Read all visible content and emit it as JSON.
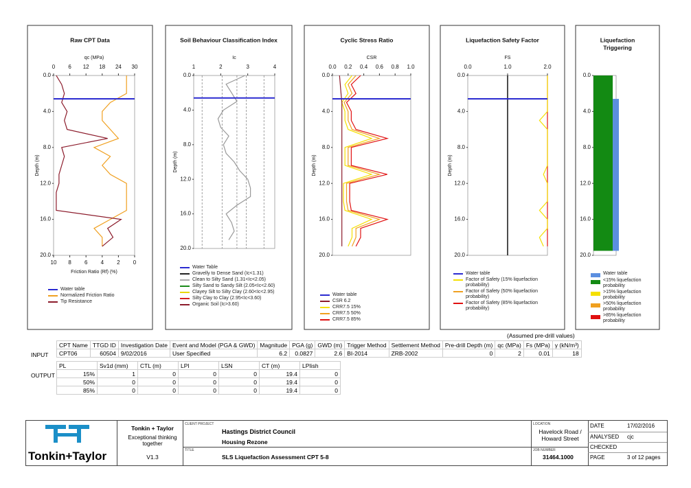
{
  "depth": [
    0,
    1,
    2,
    3,
    4,
    5,
    6,
    7,
    8,
    9,
    10,
    11,
    12,
    13,
    14,
    15,
    16,
    17,
    18,
    19
  ],
  "panels": [
    {
      "title": "Raw CPT Data",
      "xlabel": "qc (MPa)",
      "xlim": [
        0,
        30
      ],
      "xticks": [
        0,
        6,
        12,
        18,
        24,
        30
      ],
      "x2label": "Friction Ratio (Rf) (%)",
      "x2lim": [
        10,
        0
      ],
      "x2ticks": [
        10,
        8,
        6,
        4,
        2,
        0
      ],
      "ylabel": "Depth (m)",
      "ylim": [
        0,
        20
      ],
      "yticks": [
        {
          "value": 0,
          "label": "0.0"
        },
        {
          "value": 4,
          "label": "4.0"
        },
        {
          "value": 8,
          "label": "8.0"
        },
        {
          "value": 12,
          "label": "12.0"
        },
        {
          "value": 16,
          "label": "16.0"
        },
        {
          "value": 20,
          "label": "20.0"
        }
      ],
      "legend": [
        {
          "label": "Water table",
          "color": "#2a2ad0"
        },
        {
          "label": "Normalized Friction Ratio",
          "color": "#f0a020"
        },
        {
          "label": "Tip Resistance",
          "color": "#8b1a2a"
        }
      ],
      "curves": [
        {
          "color": "#f0a020",
          "axis": "x2",
          "values": [
            1,
            1,
            1,
            3,
            4,
            4,
            3,
            2,
            5,
            3,
            4,
            3,
            1,
            1,
            1,
            1,
            3,
            5,
            4,
            4
          ]
        },
        {
          "color": "#8b1a2a",
          "values": [
            1,
            3,
            4,
            3,
            5,
            4,
            5,
            20,
            3,
            4,
            3,
            2,
            2,
            1,
            1,
            1,
            25,
            20,
            22,
            18
          ]
        }
      ]
    },
    {
      "title": "Soil Behaviour Classification Index",
      "xlabel": "Ic",
      "xlim": [
        1,
        4
      ],
      "xticks": [
        1,
        2,
        3,
        4
      ],
      "ylabel": "Depth (m)",
      "ylim": [
        0,
        20
      ],
      "zone_lines": [
        1.31,
        2.05,
        2.6,
        2.95,
        3.6
      ],
      "yticks": [
        {
          "value": 0,
          "label": "0.0"
        },
        {
          "value": 4,
          "label": "4.0"
        },
        {
          "value": 8,
          "label": "8.0"
        },
        {
          "value": 12,
          "label": "12.0"
        },
        {
          "value": 16,
          "label": "16.0"
        },
        {
          "value": 20,
          "label": "20.0"
        }
      ],
      "legend": [
        {
          "label": "Water Table",
          "color": "#2a2ad0"
        },
        {
          "label": "Gravelly to Dense Sand (Ic<1.31)",
          "color": "#222"
        },
        {
          "label": "Clean to Silty Sand (1.31<Ic<2.05)",
          "color": "#aaa"
        },
        {
          "label": "Silty Sand to Sandy Silt (2.05<Ic<2.60)",
          "color": "#1a8a1a"
        },
        {
          "label": "Clayey Silt to Silty Clay (2.60<Ic<2.95)",
          "color": "#e8d800"
        },
        {
          "label": "Silty Clay to Clay (2.95<Ic<3.60)",
          "color": "#d42020"
        },
        {
          "label": "Organic Soil (Ic>3.60)",
          "color": "#8b1a2a"
        }
      ],
      "curves": [
        {
          "color": "#999",
          "values": [
            2.9,
            2.2,
            2.4,
            2.6,
            2.1,
            1.9,
            2.0,
            2.3,
            2.1,
            2.2,
            2.5,
            2.7,
            3.0,
            3.1,
            3.1,
            2.6,
            2.2,
            2.4,
            2.5,
            2.3
          ]
        }
      ]
    },
    {
      "title": "Cyclic Stress Ratio",
      "xlabel": "CSR",
      "xlim": [
        0,
        1
      ],
      "xticks": [
        {
          "value": 0,
          "label": "0.0"
        },
        {
          "value": 0.2,
          "label": "0.2"
        },
        {
          "value": 0.4,
          "label": "0.4"
        },
        {
          "value": 0.6,
          "label": "0.6"
        },
        {
          "value": 0.8,
          "label": "0.8"
        },
        {
          "value": 1,
          "label": "1.0"
        }
      ],
      "ylabel": "Depth (m)",
      "ylim": [
        0,
        20
      ],
      "yticks": [
        {
          "value": 0,
          "label": "0.0"
        },
        {
          "value": 4,
          "label": "4.0"
        },
        {
          "value": 8,
          "label": "8.0"
        },
        {
          "value": 12,
          "label": "12.0"
        },
        {
          "value": 16,
          "label": "16.0"
        },
        {
          "value": 20,
          "label": "20.0"
        }
      ],
      "legend": [
        {
          "label": "Water table",
          "color": "#2a2ad0"
        },
        {
          "label": "CSR 6.2",
          "color": "#8b1a2a"
        },
        {
          "label": "CRR7.5 15%",
          "color": "#f5e000"
        },
        {
          "label": "CRR7.5 50%",
          "color": "#f0a020"
        },
        {
          "label": "CRR7.5 85%",
          "color": "#e01010"
        }
      ],
      "curves": [
        {
          "color": "#f5e000",
          "values": [
            0.25,
            0.16,
            0.2,
            0.12,
            0.16,
            0.16,
            0.2,
            0.5,
            0.16,
            0.16,
            0.16,
            0.5,
            0.14,
            0.14,
            0.14,
            0.16,
            0.5,
            0.25,
            0.25,
            0.2
          ]
        },
        {
          "color": "#f0a020",
          "values": [
            0.3,
            0.2,
            0.25,
            0.15,
            0.2,
            0.2,
            0.25,
            0.6,
            0.2,
            0.2,
            0.2,
            0.6,
            0.18,
            0.18,
            0.18,
            0.2,
            0.6,
            0.3,
            0.3,
            0.25
          ]
        },
        {
          "color": "#e01010",
          "values": [
            0.36,
            0.24,
            0.3,
            0.18,
            0.24,
            0.24,
            0.3,
            0.7,
            0.24,
            0.24,
            0.24,
            0.7,
            0.22,
            0.22,
            0.22,
            0.24,
            0.7,
            0.36,
            0.36,
            0.3
          ]
        },
        {
          "color": "#8b1a2a",
          "values": [
            0.09,
            0.1,
            0.11,
            0.12,
            0.12,
            0.12,
            0.12,
            0.12,
            0.12,
            0.12,
            0.12,
            0.12,
            0.12,
            0.12,
            0.12,
            0.12,
            0.12,
            0.12,
            0.12,
            0.12
          ]
        }
      ]
    },
    {
      "title": "Liquefaction Safety Factor",
      "xlabel": "FS",
      "xlim": [
        0,
        2
      ],
      "xticks": [
        {
          "value": 0,
          "label": "0.0"
        },
        {
          "value": 1,
          "label": "1.0"
        },
        {
          "value": 2,
          "label": "2.0"
        }
      ],
      "ylabel": "Depth (m)",
      "ylim": [
        0,
        20
      ],
      "yticks": [
        {
          "value": 0,
          "label": "0.0"
        },
        {
          "value": 4,
          "label": "4.0"
        },
        {
          "value": 8,
          "label": "8.0"
        },
        {
          "value": 12,
          "label": "12.0"
        },
        {
          "value": 16,
          "label": "16.0"
        },
        {
          "value": 20,
          "label": "20.0"
        }
      ],
      "legend": [
        {
          "label": "Water table",
          "color": "#2a2ad0"
        },
        {
          "label": "Factor of Safety (15% liquefaction probability)",
          "color": "#f5e000"
        },
        {
          "label": "Factor of Safety (50% liquefaction probability)",
          "color": "#f0a020"
        },
        {
          "label": "Factor of Safety (85% liquefaction probability)",
          "color": "#e01010"
        }
      ],
      "curves": [
        {
          "color": "#e01010",
          "values": [
            2,
            2,
            2,
            2,
            2,
            2,
            2,
            2,
            2,
            2,
            2,
            2,
            2,
            2,
            2,
            2,
            2,
            2,
            2,
            2
          ]
        },
        {
          "color": "#f5e000",
          "values": [
            2,
            2,
            2,
            2,
            2,
            1.8,
            2,
            2,
            2,
            2,
            2,
            1.9,
            2,
            2,
            2,
            1.8,
            2,
            2,
            1.8,
            1.9
          ]
        }
      ]
    },
    {
      "title": [
        "Liquefaction",
        "Triggering"
      ],
      "ylim": [
        0,
        20
      ],
      "yticks": [
        {
          "value": 0,
          "label": "0.0"
        },
        {
          "value": 4,
          "label": "4.0"
        },
        {
          "value": 8,
          "label": "8.0"
        },
        {
          "value": 12,
          "label": "12.0"
        },
        {
          "value": 16,
          "label": "16.0"
        },
        {
          "value": 20,
          "label": "20.0"
        }
      ],
      "legend": [
        {
          "label": "Water table",
          "color": "#5b8fe0"
        },
        {
          "label": "<15% liquefaction probability",
          "color": "#138a13"
        },
        {
          "label": ">15% liquefaction probability",
          "color": "#f5e000"
        },
        {
          "label": ">50% liquefaction probability",
          "color": "#f0a020"
        },
        {
          "label": ">85% liquefaction probability",
          "color": "#e01010"
        }
      ],
      "bars": [
        {
          "color": "#138a13",
          "values": [
            0,
            19.5
          ]
        },
        {
          "color": "#5b8fe0",
          "values": [
            2.6,
            19.5
          ]
        }
      ]
    }
  ],
  "table": {
    "note": "(Assumed pre-drill values)",
    "input": {
      "label": "INPUT",
      "headers": [
        "CPT Name",
        "TTGD ID",
        "Investigation Date",
        "Event and Model (PGA & GWD)",
        "Magnitude",
        "PGA (g)",
        "GWD (m)",
        "Trigger Method",
        "Settlement Method",
        "Pre-drill Depth (m)",
        "qc (MPa)",
        "Fs (MPa)",
        "γ (kN/m³)"
      ],
      "values": [
        "CPT06",
        60504,
        "9/02/2016",
        "User Specified",
        6.2,
        0.0827,
        2.6,
        "BI-2014",
        "ZRB-2002",
        0,
        2,
        0.01,
        18
      ]
    },
    "output": {
      "label": "OUTPUT",
      "headers": [
        "PL",
        "Sv1d (mm)",
        "CTL (m)",
        "LPI",
        "LSN",
        "CT (m)",
        "LPIish"
      ],
      "rows": [
        [
          "15%",
          1,
          0,
          0,
          0,
          19.4,
          0
        ],
        [
          "50%",
          0,
          0,
          0,
          0,
          19.4,
          0
        ],
        [
          "85%",
          0,
          0,
          0,
          0,
          19.4,
          0
        ]
      ]
    }
  },
  "footer": {
    "company": "Tonkin + Taylor",
    "tagline": "Exceptional thinking together",
    "version": "V1.3",
    "logo": "Tonkin+Taylor",
    "client_label": "CLIENT PROJECT",
    "client": "Hastings District Council",
    "project": "Housing Rezone",
    "title_label": "TITLE",
    "title": "SLS Liquefaction Assessment CPT 5-8",
    "location_label": "LOCATION",
    "location": "Havelock Road / Howard Street",
    "job_label": "JOB NUMBER",
    "job": "31464.1000",
    "date_label": "DATE",
    "date": "17/02/2016",
    "analysed_label": "ANALYSED",
    "analysed": "cjc",
    "checked_label": "CHECKED",
    "page_label": "PAGE",
    "page": "3 of 12 pages"
  }
}
